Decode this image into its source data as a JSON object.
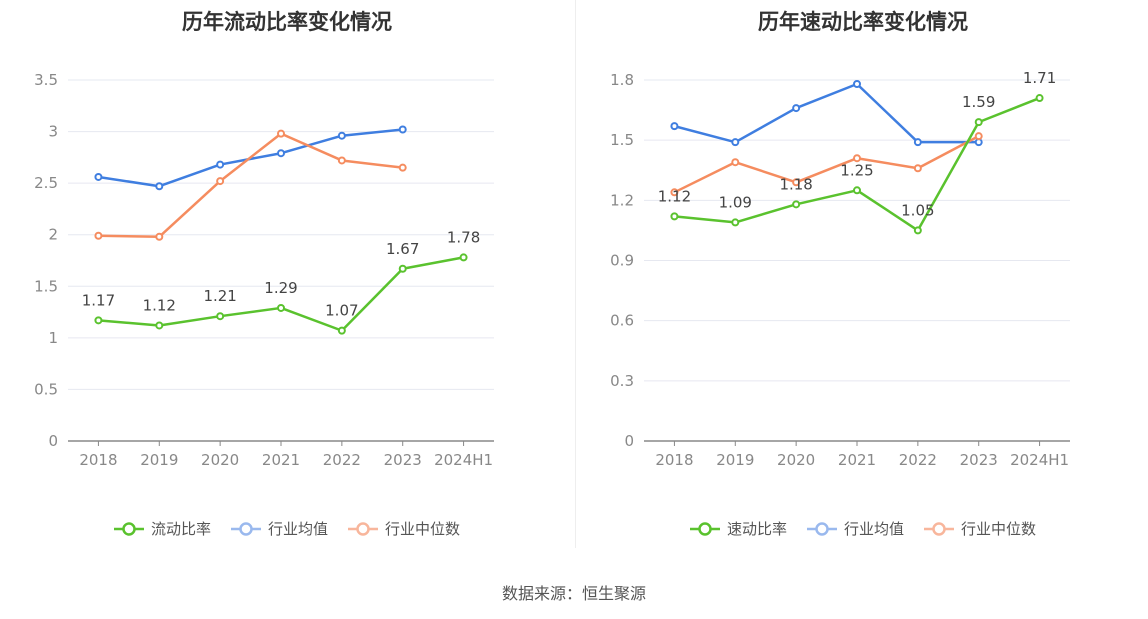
{
  "source": "数据来源：恒生聚源",
  "colors": {
    "company": "#5ac22e",
    "avg": "#3f7ee0",
    "median": "#f58c5f"
  },
  "chart_data": [
    {
      "type": "line",
      "title": "历年流动比率变化情况",
      "categories": [
        "2018",
        "2019",
        "2020",
        "2021",
        "2022",
        "2023",
        "2024H1"
      ],
      "ylim": [
        0,
        3.5
      ],
      "yticks": [
        "0",
        "0.5",
        "1",
        "1.5",
        "2",
        "2.5",
        "3",
        "3.5"
      ],
      "series": [
        {
          "name": "流动比率",
          "key": "company",
          "values": [
            1.17,
            1.12,
            1.21,
            1.29,
            1.07,
            1.67,
            1.78
          ],
          "labels": [
            "1.17",
            "1.12",
            "1.21",
            "1.29",
            "1.07",
            "1.67",
            "1.78"
          ]
        },
        {
          "name": "行业均值",
          "key": "avg",
          "values": [
            2.56,
            2.47,
            2.68,
            2.79,
            2.96,
            3.02,
            null
          ]
        },
        {
          "name": "行业中位数",
          "key": "median",
          "values": [
            1.99,
            1.98,
            2.52,
            2.98,
            2.72,
            2.65,
            null
          ]
        }
      ]
    },
    {
      "type": "line",
      "title": "历年速动比率变化情况",
      "categories": [
        "2018",
        "2019",
        "2020",
        "2021",
        "2022",
        "2023",
        "2024H1"
      ],
      "ylim": [
        0,
        1.8
      ],
      "yticks": [
        "0",
        "0.3",
        "0.6",
        "0.9",
        "1.2",
        "1.5",
        "1.8"
      ],
      "series": [
        {
          "name": "速动比率",
          "key": "company",
          "values": [
            1.12,
            1.09,
            1.18,
            1.25,
            1.05,
            1.59,
            1.71
          ],
          "labels": [
            "1.12",
            "1.09",
            "1.18",
            "1.25",
            "1.05",
            "1.59",
            "1.71"
          ]
        },
        {
          "name": "行业均值",
          "key": "avg",
          "values": [
            1.57,
            1.49,
            1.66,
            1.78,
            1.49,
            1.49,
            null
          ]
        },
        {
          "name": "行业中位数",
          "key": "median",
          "values": [
            1.24,
            1.39,
            1.29,
            1.41,
            1.36,
            1.52,
            null
          ]
        }
      ]
    }
  ]
}
